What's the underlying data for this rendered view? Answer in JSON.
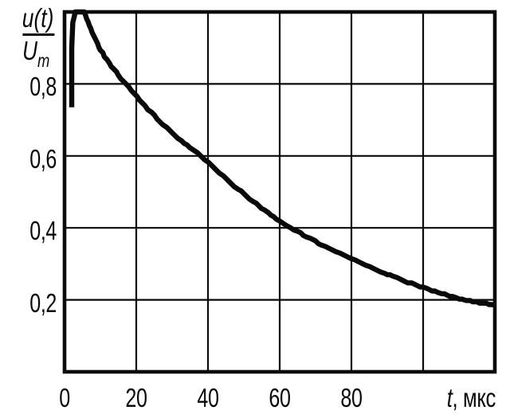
{
  "colors": {
    "background": "#ffffff",
    "ink": "#0a0a0a"
  },
  "chart_data": {
    "type": "line",
    "title": "",
    "description": "Normalized exponential discharge curve u(t)/Um versus time in microseconds",
    "grid": true,
    "legend_position": "none",
    "y_axis": {
      "label_numerator": "u(t)",
      "label_denominator_base": "U",
      "label_denominator_sub": "m",
      "range": [
        0,
        1.0
      ],
      "ticks": [
        "0,8",
        "0,6",
        "0,4",
        "0,2"
      ],
      "tick_values": [
        0.8,
        0.6,
        0.4,
        0.2
      ],
      "gridline_values": [
        0.8,
        0.6,
        0.4,
        0.2
      ]
    },
    "x_axis": {
      "label_symbol": "t",
      "label_unit": ", мкс",
      "range": [
        0,
        120
      ],
      "ticks": [
        "0",
        "20",
        "40",
        "60",
        "80"
      ],
      "tick_values": [
        0,
        20,
        40,
        60,
        80
      ],
      "gridline_values": [
        20,
        40,
        60,
        80,
        100
      ]
    },
    "series": [
      {
        "name": "u(t)/Um",
        "points": [
          [
            2.0,
            0.735
          ],
          [
            2.0,
            0.9
          ],
          [
            2.3,
            0.97
          ],
          [
            3.0,
            1.0
          ],
          [
            5.5,
            1.0
          ],
          [
            8,
            0.935
          ],
          [
            10,
            0.895
          ],
          [
            12.5,
            0.857
          ],
          [
            15,
            0.825
          ],
          [
            17,
            0.8
          ],
          [
            20,
            0.765
          ],
          [
            25,
            0.712
          ],
          [
            30,
            0.664
          ],
          [
            35,
            0.622
          ],
          [
            38,
            0.6
          ],
          [
            40,
            0.582
          ],
          [
            45,
            0.537
          ],
          [
            50,
            0.494
          ],
          [
            55,
            0.455
          ],
          [
            60,
            0.419
          ],
          [
            63,
            0.4
          ],
          [
            65,
            0.389
          ],
          [
            70,
            0.362
          ],
          [
            75,
            0.337
          ],
          [
            80,
            0.313
          ],
          [
            85,
            0.291
          ],
          [
            90,
            0.271
          ],
          [
            95,
            0.252
          ],
          [
            100,
            0.234
          ],
          [
            105,
            0.218
          ],
          [
            110,
            0.203
          ],
          [
            112,
            0.2
          ],
          [
            115,
            0.193
          ],
          [
            120,
            0.185
          ]
        ]
      }
    ]
  }
}
